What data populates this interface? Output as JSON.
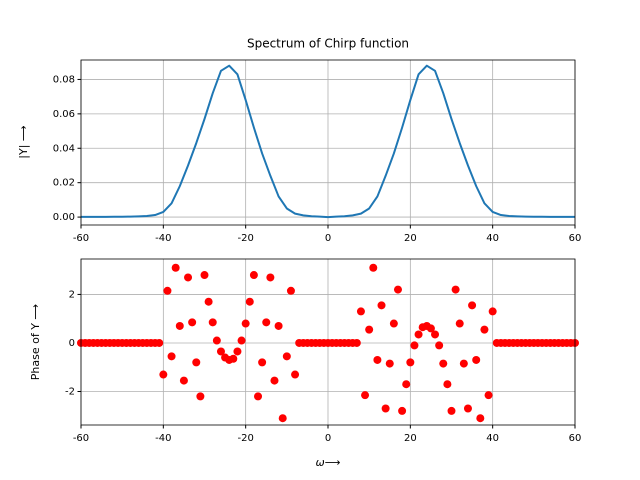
{
  "chart_data": [
    {
      "type": "line",
      "title": "Spectrum of Chirp function",
      "ylabel": "|Y| ⟶",
      "color": "#1f77b4",
      "grid": true,
      "x": [
        -60,
        -58,
        -56,
        -54,
        -52,
        -50,
        -48,
        -46,
        -44,
        -42,
        -40,
        -38,
        -36,
        -34,
        -32,
        -30,
        -28,
        -26,
        -24,
        -22,
        -20,
        -18,
        -16,
        -14,
        -12,
        -10,
        -8,
        -6,
        -4,
        -2,
        0,
        2,
        4,
        6,
        8,
        10,
        12,
        14,
        16,
        18,
        20,
        22,
        24,
        26,
        28,
        30,
        32,
        34,
        36,
        38,
        40,
        42,
        44,
        46,
        48,
        50,
        52,
        54,
        56,
        58,
        60
      ],
      "values": [
        0.0001,
        0.0001,
        0.0001,
        0.0001,
        0.0002,
        0.0002,
        0.0003,
        0.0004,
        0.0006,
        0.0012,
        0.003,
        0.008,
        0.018,
        0.03,
        0.043,
        0.057,
        0.072,
        0.085,
        0.088,
        0.083,
        0.068,
        0.052,
        0.037,
        0.024,
        0.012,
        0.005,
        0.002,
        0.001,
        0.0005,
        0.0003,
        0,
        0.0003,
        0.0005,
        0.001,
        0.002,
        0.005,
        0.012,
        0.024,
        0.037,
        0.052,
        0.068,
        0.083,
        0.088,
        0.085,
        0.072,
        0.057,
        0.043,
        0.03,
        0.018,
        0.008,
        0.003,
        0.0012,
        0.0006,
        0.0004,
        0.0003,
        0.0002,
        0.0002,
        0.0001,
        0.0001,
        0.0001,
        0.0001
      ],
      "xlim": [
        -60,
        60
      ],
      "xticks": [
        -60,
        -40,
        -20,
        0,
        20,
        40,
        60
      ],
      "ylim": [
        -0.0046,
        0.0913
      ],
      "yticks": [
        {
          "value": 0,
          "label": "0.00"
        },
        {
          "value": 0.02,
          "label": "0.02"
        },
        {
          "value": 0.04,
          "label": "0.04"
        },
        {
          "value": 0.06,
          "label": "0.06"
        },
        {
          "value": 0.08,
          "label": "0.08"
        }
      ]
    },
    {
      "type": "scatter",
      "xlabel": "ω⟶",
      "ylabel": "Phase of Y ⟶",
      "color": "#ff0000",
      "grid": true,
      "x": [
        -60,
        -59,
        -58,
        -57,
        -56,
        -55,
        -54,
        -53,
        -52,
        -51,
        -50,
        -49,
        -48,
        -47,
        -46,
        -45,
        -44,
        -43,
        -42,
        -41,
        -40,
        -39,
        -38,
        -37,
        -36,
        -35,
        -34,
        -33,
        -32,
        -31,
        -30,
        -29,
        -28,
        -27,
        -26,
        -25,
        -24,
        -23,
        -22,
        -21,
        -20,
        -19,
        -18,
        -17,
        -16,
        -15,
        -14,
        -13,
        -12,
        -11,
        -10,
        -9,
        -8,
        -7,
        -6,
        -5,
        -4,
        -3,
        -2,
        -1,
        0,
        1,
        2,
        3,
        4,
        5,
        6,
        7,
        8,
        9,
        10,
        11,
        12,
        13,
        14,
        15,
        16,
        17,
        18,
        19,
        20,
        21,
        22,
        23,
        24,
        25,
        26,
        27,
        28,
        29,
        30,
        31,
        32,
        33,
        34,
        35,
        36,
        37,
        38,
        39,
        40,
        41,
        42,
        43,
        44,
        45,
        46,
        47,
        48,
        49,
        50,
        51,
        52,
        53,
        54,
        55,
        56,
        57,
        58,
        59,
        60
      ],
      "values": [
        0,
        0,
        0,
        0,
        0,
        0,
        0,
        0,
        0,
        0,
        0,
        0,
        0,
        0,
        0,
        0,
        0,
        0,
        0,
        0,
        -1.3,
        2.15,
        -0.55,
        3.1,
        0.7,
        -1.55,
        2.7,
        0.85,
        -0.8,
        -2.2,
        2.8,
        1.7,
        0.85,
        0.1,
        -0.35,
        -0.6,
        -0.7,
        -0.65,
        -0.35,
        0.1,
        0.8,
        1.7,
        2.8,
        -2.2,
        -0.8,
        0.85,
        2.7,
        -1.55,
        0.7,
        -3.1,
        -0.55,
        2.15,
        -1.3,
        0,
        0,
        0,
        0,
        0,
        0,
        0,
        0,
        0,
        0,
        0,
        0,
        0,
        0,
        0,
        1.3,
        -2.15,
        0.55,
        3.1,
        -0.7,
        1.55,
        -2.7,
        -0.85,
        0.8,
        2.2,
        -2.8,
        -1.7,
        -0.8,
        -0.1,
        0.35,
        0.65,
        0.7,
        0.6,
        0.35,
        -0.1,
        -0.85,
        -1.7,
        -2.8,
        2.2,
        0.8,
        -0.85,
        -2.7,
        1.55,
        -0.7,
        -3.1,
        0.55,
        -2.15,
        1.3,
        0,
        0,
        0,
        0,
        0,
        0,
        0,
        0,
        0,
        0,
        0,
        0,
        0,
        0,
        0,
        0,
        0,
        0,
        0,
        0
      ],
      "xlim": [
        -60,
        60
      ],
      "xticks": [
        -60,
        -40,
        -20,
        0,
        20,
        40,
        60
      ],
      "ylim": [
        -3.38,
        3.46
      ],
      "yticks": [
        -2,
        0,
        2
      ]
    }
  ]
}
